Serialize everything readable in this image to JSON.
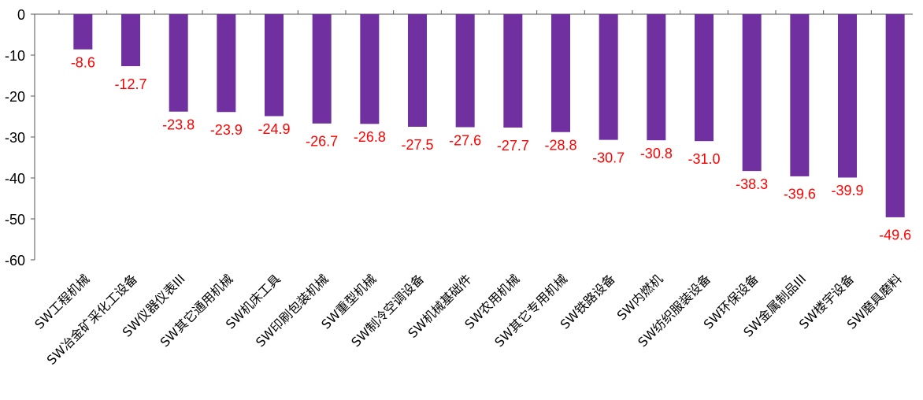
{
  "chart_data": {
    "type": "bar",
    "categories": [
      "SW工程机械",
      "SW冶金矿采化工设备",
      "SW仪器仪表III",
      "SW其它通用机械",
      "SW机床工具",
      "SW印刷包装机械",
      "SW重型机械",
      "SW制冷空调设备",
      "SW机械基础件",
      "SW农用机械",
      "SW其它专用机械",
      "SW铁路设备",
      "SW内燃机",
      "SW纺织服装设备",
      "SW环保设备",
      "SW金属制品III",
      "SW楼宇设备",
      "SW磨具磨料"
    ],
    "values": [
      -8.6,
      -12.7,
      -23.8,
      -23.9,
      -24.9,
      -26.7,
      -26.8,
      -27.5,
      -27.6,
      -27.7,
      -28.8,
      -30.7,
      -30.8,
      -31.0,
      -38.3,
      -39.6,
      -39.9,
      -49.6
    ],
    "value_labels": [
      "-8.6",
      "-12.7",
      "-23.8",
      "-23.9",
      "-24.9",
      "-26.7",
      "-26.8",
      "-27.5",
      "-27.6",
      "-27.7",
      "-28.8",
      "-30.7",
      "-30.8",
      "-31.0",
      "-38.3",
      "-39.6",
      "-39.9",
      "-49.6"
    ],
    "color": "#7030a0",
    "label_color": "#ff0000",
    "ylim": [
      -60,
      0
    ],
    "yticks": [
      0,
      -10,
      -20,
      -30,
      -40,
      -50,
      -60
    ],
    "grid": false
  }
}
